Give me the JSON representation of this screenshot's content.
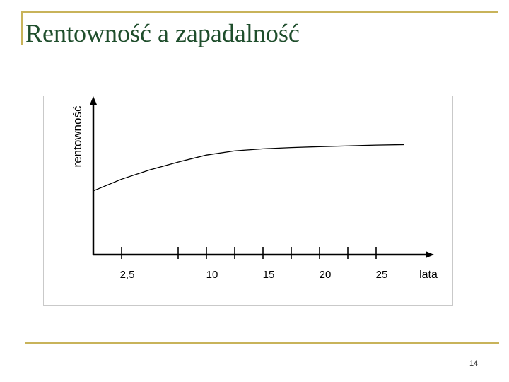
{
  "slide": {
    "title": "Rentowność a zapadalność",
    "page_number": "14"
  },
  "colors": {
    "accent_rule": "#c8b35a",
    "title": "#1f4e2c",
    "frame_border": "#c9c9c9",
    "axis": "#000000",
    "curve": "#000000"
  },
  "chart_data": {
    "type": "line",
    "title": "",
    "xlabel": "lata",
    "ylabel": "rentowność",
    "x_ticks": [
      {
        "value": 2.5,
        "label": "2,5"
      },
      {
        "value": 7.5,
        "label": ""
      },
      {
        "value": 10,
        "label": "10"
      },
      {
        "value": 12.5,
        "label": ""
      },
      {
        "value": 15,
        "label": "15"
      },
      {
        "value": 17.5,
        "label": ""
      },
      {
        "value": 20,
        "label": "20"
      },
      {
        "value": 22.5,
        "label": ""
      },
      {
        "value": 25,
        "label": "25"
      }
    ],
    "xlim": [
      0,
      29.5
    ],
    "ylim": [
      0,
      1
    ],
    "y_ticks": [],
    "grid": false,
    "series": [
      {
        "x": [
          0,
          2.5,
          5,
          7.5,
          10,
          12.5,
          15,
          17.5,
          20,
          22.5,
          25,
          27.5
        ],
        "y": [
          0.41,
          0.485,
          0.545,
          0.595,
          0.64,
          0.667,
          0.68,
          0.688,
          0.694,
          0.699,
          0.704,
          0.707
        ]
      }
    ]
  }
}
